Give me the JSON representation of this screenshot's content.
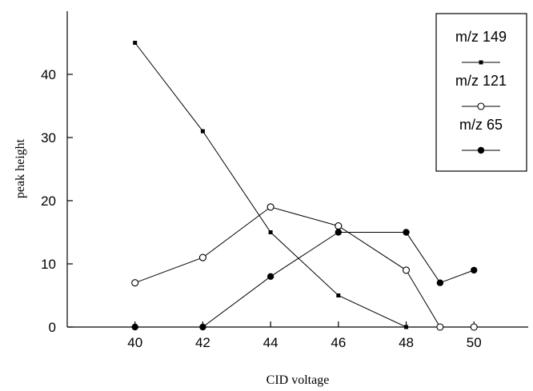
{
  "chart_data": {
    "type": "line",
    "title": "",
    "xlabel": "CID voltage",
    "ylabel": "peak height",
    "xlim": [
      38,
      51.6
    ],
    "ylim": [
      0,
      50
    ],
    "xticks": [
      40,
      42,
      44,
      46,
      48,
      50
    ],
    "yticks": [
      0,
      10,
      20,
      30,
      40
    ],
    "grid": false,
    "legend_position": "top-right",
    "series": [
      {
        "name": "m/z 149",
        "marker": "small-filled-square",
        "points": [
          [
            40,
            45
          ],
          [
            42,
            31
          ],
          [
            44,
            15
          ],
          [
            46,
            5
          ],
          [
            48,
            0
          ],
          [
            49,
            0
          ],
          [
            50,
            0
          ]
        ]
      },
      {
        "name": "m/z 121",
        "marker": "open-circle",
        "points": [
          [
            40,
            7
          ],
          [
            42,
            11
          ],
          [
            44,
            19
          ],
          [
            46,
            16
          ],
          [
            48,
            9
          ],
          [
            49,
            0
          ],
          [
            50,
            0
          ]
        ]
      },
      {
        "name": "m/z 65",
        "marker": "filled-circle",
        "points": [
          [
            40,
            0
          ],
          [
            42,
            0
          ],
          [
            44,
            8
          ],
          [
            46,
            15
          ],
          [
            48,
            15
          ],
          [
            49,
            7
          ],
          [
            50,
            9
          ]
        ]
      }
    ]
  }
}
